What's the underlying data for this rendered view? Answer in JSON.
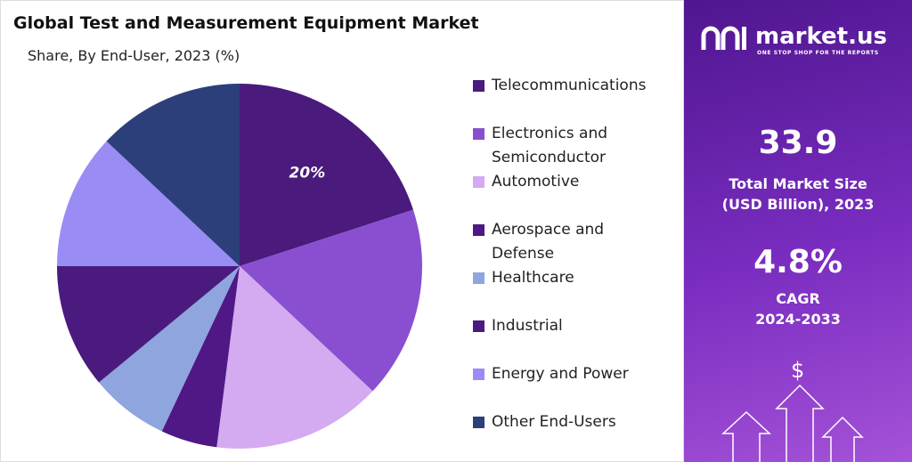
{
  "chart_data": {
    "type": "pie",
    "title": "Global Test and Measurement Equipment Market",
    "subtitle": "Share, By End-User, 2023 (%)",
    "categories": [
      "Telecommunications",
      "Electronics and Semiconductor",
      "Automotive",
      "Aerospace and Defense",
      "Healthcare",
      "Industrial",
      "Energy and Power",
      "Other End-Users"
    ],
    "values": [
      20,
      17,
      15,
      5,
      7,
      11,
      12,
      13
    ],
    "value_labels": [
      "20%",
      null,
      null,
      null,
      null,
      null,
      null,
      null
    ],
    "colors": [
      "#4a1a7c",
      "#8a4fd0",
      "#d4aaf0",
      "#4f1886",
      "#8ea5dd",
      "#4b1a7e",
      "#9a8cf5",
      "#2c3f7a"
    ]
  },
  "side_panel": {
    "brand": "market.us",
    "tagline": "ONE STOP SHOP FOR THE REPORTS",
    "market_size": "33.9",
    "market_size_label": "Total Market Size (USD Billion), 2023",
    "cagr": "4.8%",
    "cagr_label": "CAGR",
    "cagr_period": "2024-2033",
    "icon_symbol": "$"
  }
}
